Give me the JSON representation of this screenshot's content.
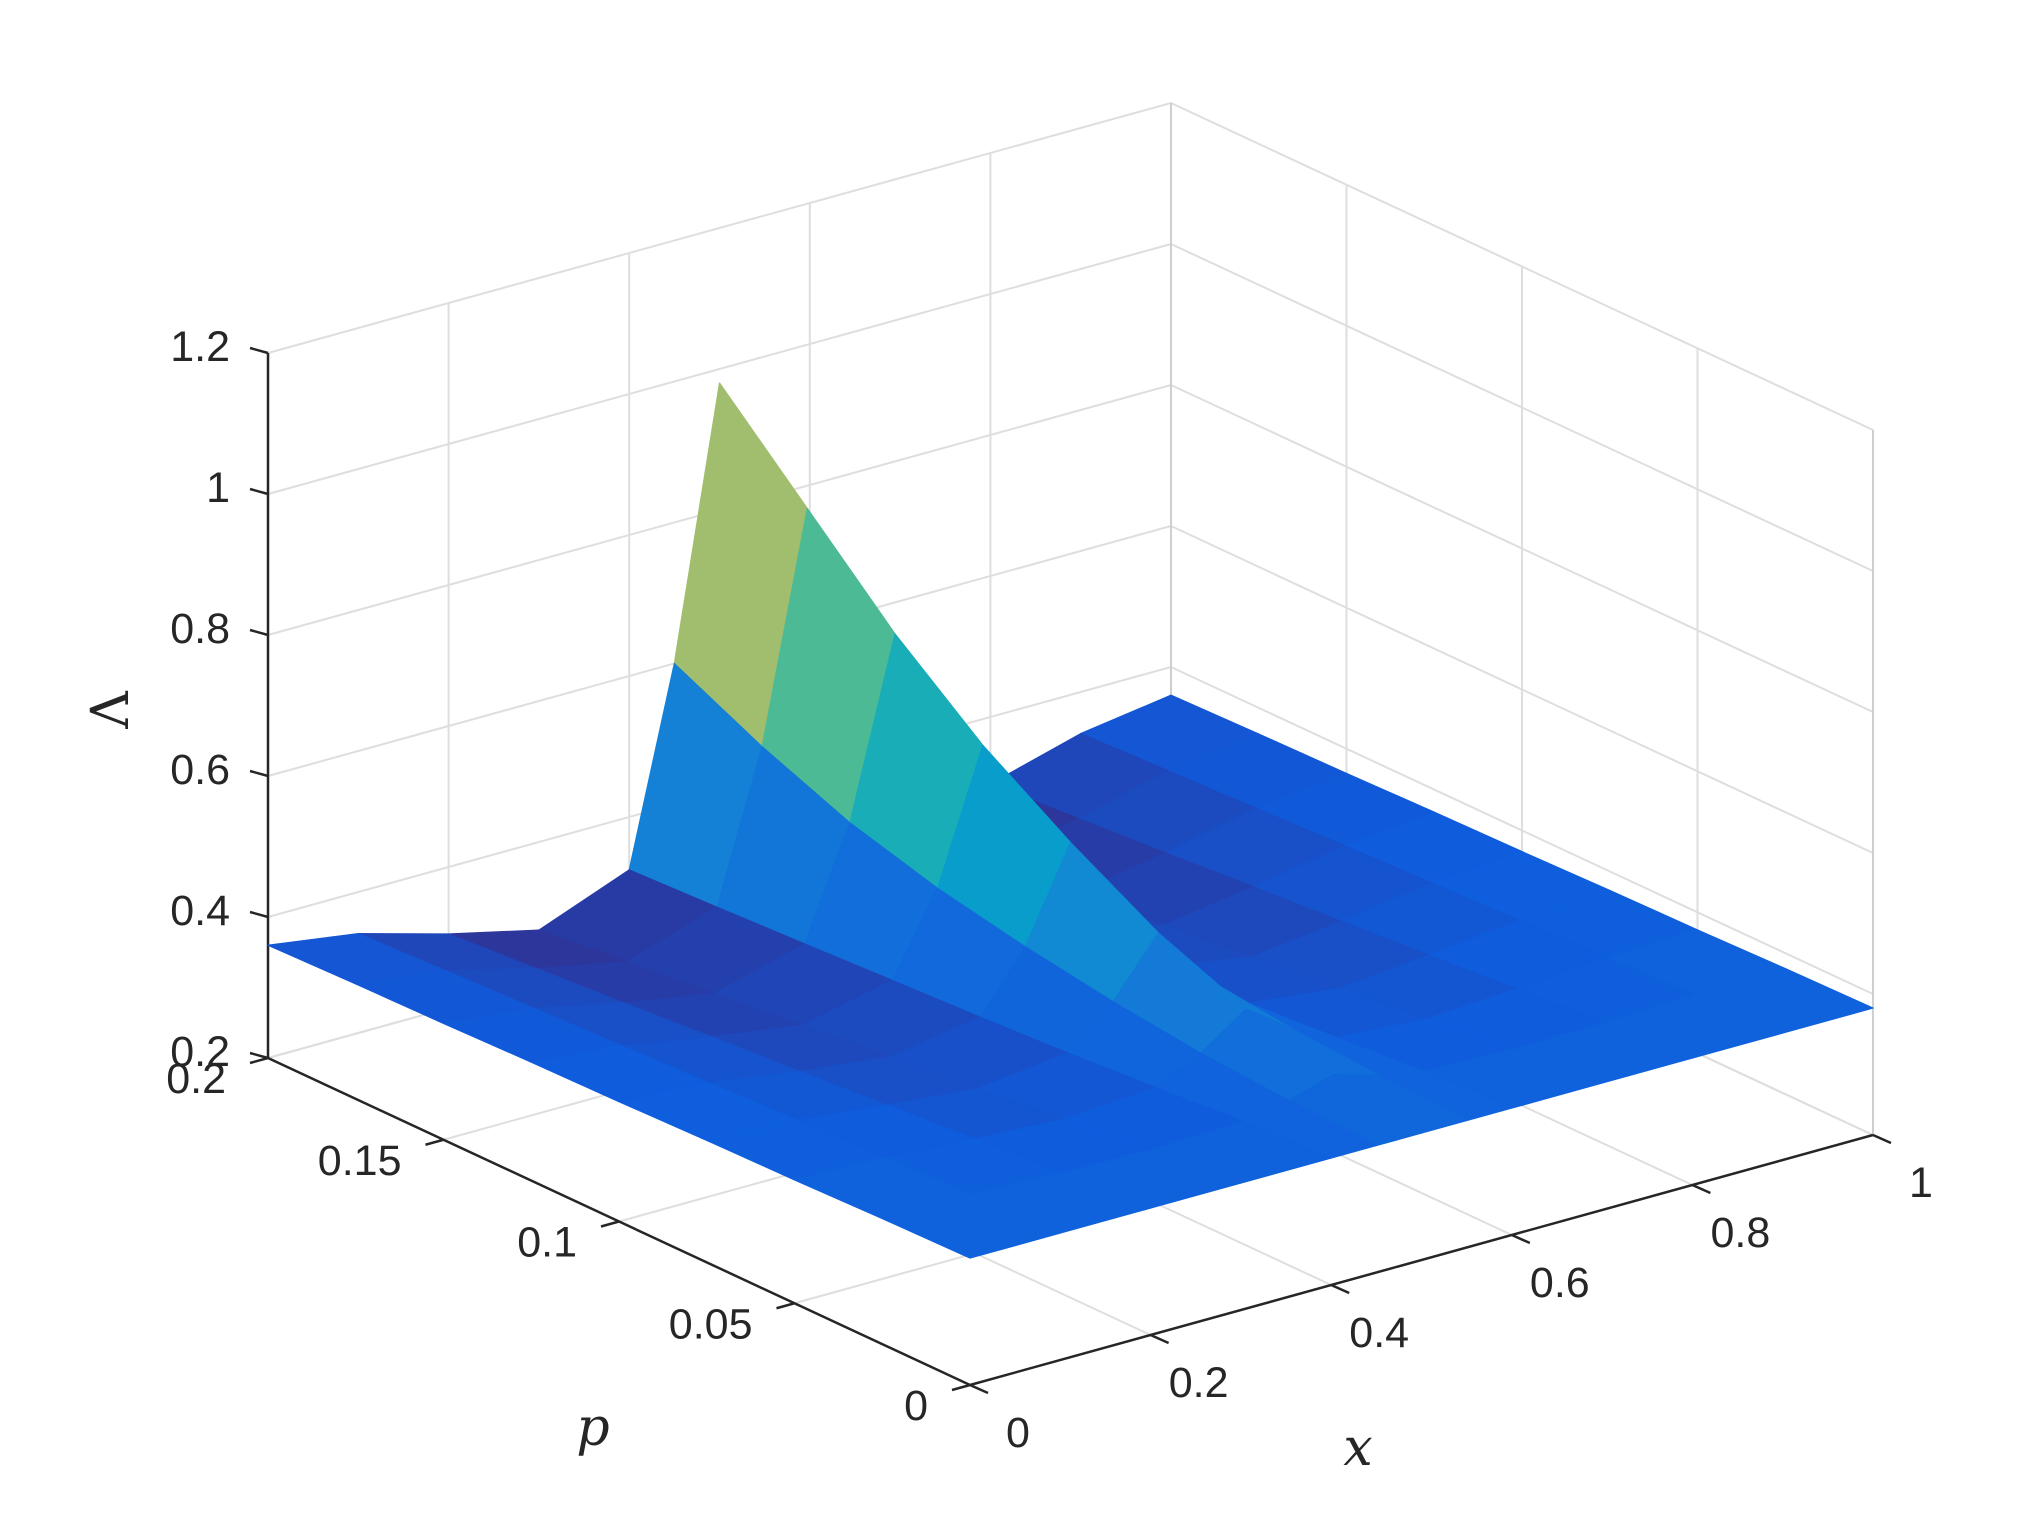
{
  "chart_data": {
    "type": "surface",
    "title": "",
    "xlabel": "x",
    "ylabel": "p",
    "zlabel": "Λ",
    "xlim": [
      0,
      1
    ],
    "ylim": [
      0,
      0.2
    ],
    "zlim": [
      0.2,
      1.2
    ],
    "x_ticks": [
      "0",
      "0.2",
      "0.4",
      "0.6",
      "0.8",
      "1"
    ],
    "y_ticks": [
      "0",
      "0.05",
      "0.1",
      "0.15",
      "0.2"
    ],
    "z_ticks": [
      "0.2",
      "0.4",
      "0.6",
      "0.8",
      "1",
      "1.2"
    ],
    "grid": true,
    "colormap": "parula",
    "colormap_stops": [
      "#352a87",
      "#0f5cdd",
      "#1481d6",
      "#06a4ca",
      "#2eb7a4",
      "#87bf77",
      "#d1bb59",
      "#fec832",
      "#f9fb0e"
    ],
    "surface_x": [
      0,
      0.1,
      0.2,
      0.3,
      0.4,
      0.45,
      0.5,
      0.55,
      0.6,
      0.7,
      0.8,
      0.9,
      1
    ],
    "surface_p": [
      0,
      0.025,
      0.05,
      0.075,
      0.1,
      0.125,
      0.15,
      0.175,
      0.2
    ],
    "surface_z": [
      [
        0.38,
        0.38,
        0.38,
        0.38,
        0.38,
        0.38,
        0.38,
        0.38,
        0.38,
        0.38,
        0.38,
        0.38,
        0.38
      ],
      [
        0.378,
        0.376,
        0.372,
        0.37,
        0.374,
        0.386,
        0.405,
        0.386,
        0.374,
        0.37,
        0.372,
        0.376,
        0.378
      ],
      [
        0.375,
        0.371,
        0.362,
        0.355,
        0.364,
        0.395,
        0.44,
        0.395,
        0.364,
        0.355,
        0.362,
        0.371,
        0.375
      ],
      [
        0.373,
        0.366,
        0.352,
        0.34,
        0.355,
        0.41,
        0.49,
        0.41,
        0.355,
        0.34,
        0.352,
        0.366,
        0.373
      ],
      [
        0.37,
        0.361,
        0.342,
        0.327,
        0.348,
        0.43,
        0.56,
        0.43,
        0.348,
        0.327,
        0.342,
        0.361,
        0.37
      ],
      [
        0.368,
        0.356,
        0.333,
        0.314,
        0.342,
        0.455,
        0.64,
        0.455,
        0.342,
        0.314,
        0.333,
        0.356,
        0.368
      ],
      [
        0.365,
        0.351,
        0.323,
        0.301,
        0.336,
        0.49,
        0.74,
        0.49,
        0.336,
        0.301,
        0.323,
        0.351,
        0.365
      ],
      [
        0.363,
        0.346,
        0.314,
        0.288,
        0.33,
        0.54,
        0.86,
        0.54,
        0.33,
        0.288,
        0.314,
        0.346,
        0.363
      ],
      [
        0.36,
        0.341,
        0.305,
        0.275,
        0.325,
        0.6,
        0.98,
        0.6,
        0.325,
        0.275,
        0.305,
        0.341,
        0.36
      ]
    ]
  }
}
